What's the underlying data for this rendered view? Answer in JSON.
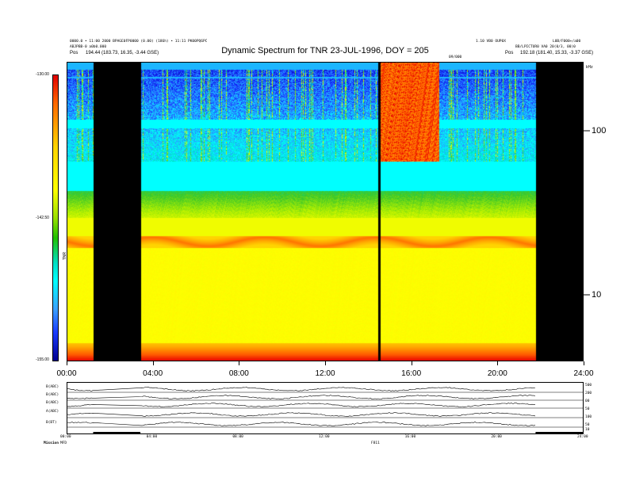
{
  "header": {
    "left_line1": "0000.0 • 11:00 2000 BPAGE0FP0000 (0.00) (186h) • 11:11 PK00PQ6PC",
    "left_line2": "ABJPBB-0 a0b0.000",
    "left_pos_label": "Pos",
    "left_pos_value": "194.44 (183.73, 16.35, -3.44 GSE)",
    "right_line1": "1.10 VB0 OUP0X",
    "right_line2": "BB/LPICTUR0 VA0 20(0/3, 00)0",
    "right_corner": "L0B/F000+/a00",
    "right_pos_label": "Pos",
    "right_pos_value": "192.18 (181.40, 15.33, -3.37 GSE)",
    "center_small": "09/000"
  },
  "colors": {
    "red": "#ff1a00",
    "orange": "#ff7a00",
    "yellow": "#ffff00",
    "cyan": "#00ffff",
    "blue": "#1a3cff",
    "darkblue": "#0000b0",
    "black": "#000000"
  },
  "chart_data": {
    "type": "heatmap",
    "title": "Dynamic Spectrum for TNR 23-JUL-1996, DOY = 205",
    "x_tick_labels": [
      "00:00",
      "04:00",
      "08:00",
      "12:00",
      "16:00",
      "20:00",
      "24:00"
    ],
    "x_ticks_hours": [
      0,
      4,
      8,
      12,
      16,
      20,
      24
    ],
    "xlim": [
      0,
      24
    ],
    "yscale": "log",
    "ylim_khz": [
      4,
      250
    ],
    "y_tick_labels": [
      "100",
      "10"
    ],
    "y_ticks": [
      100,
      10
    ],
    "y_unit_label": "kHz",
    "colorbar_labels": [
      "-130.00",
      "-142.50",
      "-155.00"
    ],
    "colorbar_title": "TNR",
    "colorbar_levels": [
      -130.0,
      -142.5,
      -155.0
    ],
    "data_gaps_hours": [
      [
        1.2,
        3.4
      ],
      [
        21.8,
        24.0
      ]
    ],
    "marker_line_hour": 14.5
  },
  "panel": {
    "labels": [
      "B(ABC)",
      "B(ABC)",
      "B(ABC)",
      "A(ABC)",
      "B(BT)"
    ],
    "right_scale": [
      "500",
      "200",
      "00",
      "50",
      "100",
      "50",
      "10",
      "0"
    ],
    "bottom_left": "Mission",
    "bottom_left2": "MFD",
    "bottom_center": "F811"
  }
}
